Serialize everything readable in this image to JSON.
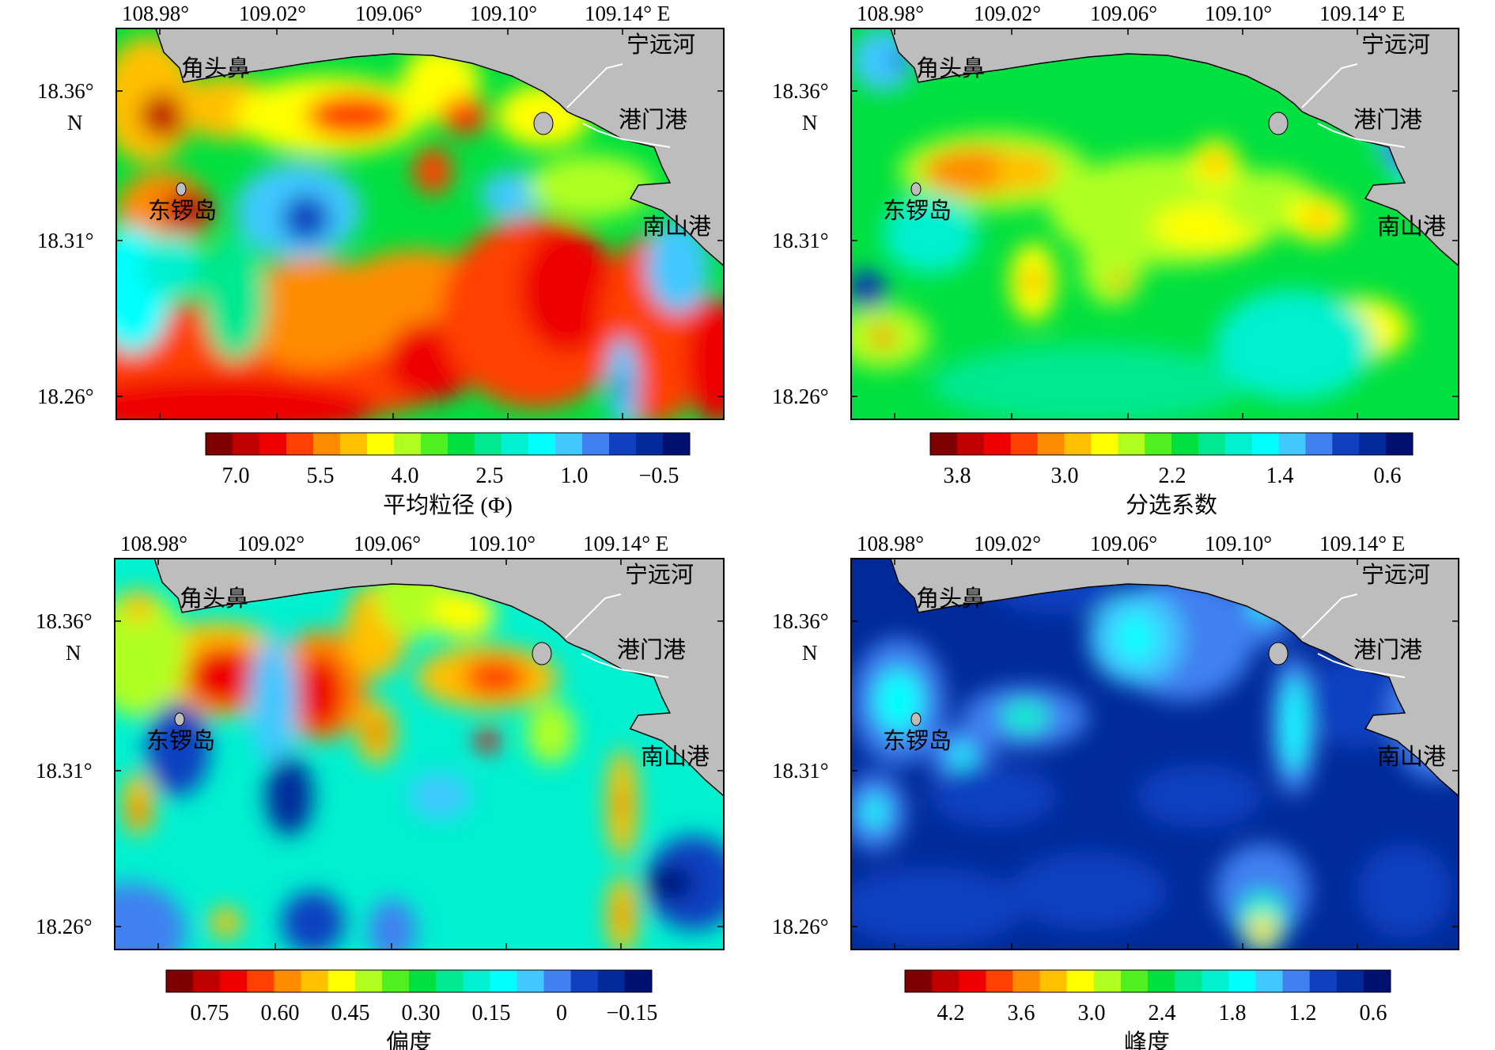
{
  "lon_ticks": [
    "108.98°",
    "109.02°",
    "109.06°",
    "109.10°",
    "109.14° E"
  ],
  "lat_ticks": [
    "18.36°",
    "18.31°",
    "18.26°"
  ],
  "lat_unit": "N",
  "place_names": {
    "cape": "角头鼻",
    "island": "东锣岛",
    "river": "宁远河",
    "port": "港门港",
    "nanshan": "南山港"
  },
  "panels": [
    {
      "id": "mean-grain-size",
      "colorbar_title": "平均粒径 (Φ)",
      "colorbar_labels": [
        "7.0",
        "5.5",
        "4.0",
        "2.5",
        "1.0",
        "−0.5"
      ],
      "scheme": "mean"
    },
    {
      "id": "sorting-coefficient",
      "colorbar_title": "分选系数",
      "colorbar_labels": [
        "3.8",
        "3.0",
        "2.2",
        "1.4",
        "0.6"
      ],
      "scheme": "sorting"
    },
    {
      "id": "skewness",
      "colorbar_title": "偏度",
      "colorbar_labels": [
        "0.75",
        "0.60",
        "0.45",
        "0.30",
        "0.15",
        "0",
        "−0.15"
      ],
      "scheme": "skew"
    },
    {
      "id": "kurtosis",
      "colorbar_title": "峰度",
      "colorbar_labels": [
        "4.2",
        "3.6",
        "3.0",
        "2.4",
        "1.8",
        "1.2",
        "0.6"
      ],
      "scheme": "kurt"
    }
  ],
  "colors": {
    "land": "#bdbdbd",
    "ramp": [
      "#7f0000",
      "#bf0000",
      "#ee0000",
      "#ff4000",
      "#ff8c00",
      "#ffc000",
      "#ffff00",
      "#b0ff20",
      "#50f020",
      "#00e040",
      "#00e890",
      "#00f0d0",
      "#00ffff",
      "#40c8ff",
      "#4080f0",
      "#1040c0",
      "#002a9a",
      "#001070"
    ]
  }
}
